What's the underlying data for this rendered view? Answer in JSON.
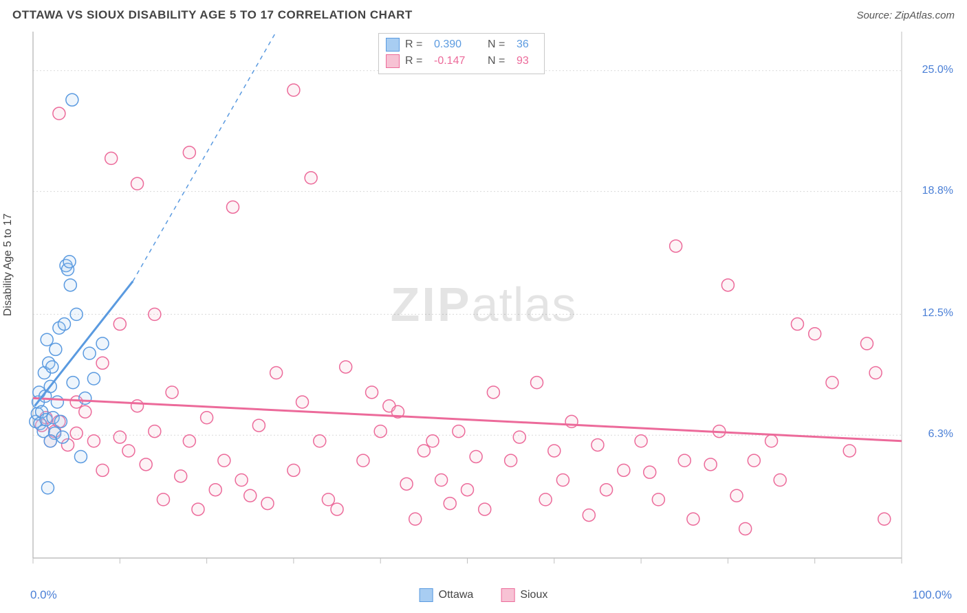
{
  "header": {
    "title": "OTTAWA VS SIOUX DISABILITY AGE 5 TO 17 CORRELATION CHART",
    "source": "Source: ZipAtlas.com"
  },
  "watermark": {
    "zip": "ZIP",
    "atlas": "atlas"
  },
  "chart": {
    "type": "scatter",
    "ylabel": "Disability Age 5 to 17",
    "background_color": "#ffffff",
    "grid_color": "#d9d9d9",
    "axis_color": "#bfbfbf",
    "tick_color": "#bfbfbf",
    "label_fontsize": 16,
    "xlim": [
      0,
      100
    ],
    "ylim": [
      0,
      27
    ],
    "x_axis": {
      "min_label": "0.0%",
      "max_label": "100.0%",
      "label_color": "#4a7fd6",
      "tick_step": 10
    },
    "y_gridlines": [
      6.3,
      12.5,
      18.8,
      25.0
    ],
    "y_gridline_labels": [
      "6.3%",
      "12.5%",
      "18.8%",
      "25.0%"
    ],
    "marker_radius": 9,
    "marker_stroke_width": 1.5,
    "marker_fill_opacity": 0.2,
    "series": {
      "ottawa": {
        "label": "Ottawa",
        "color_stroke": "#5a9ae0",
        "color_fill": "#a8cdf2",
        "R": "0.390",
        "N": "36",
        "trend": {
          "x1": 0.2,
          "y1": 7.8,
          "x2": 11.5,
          "y2": 14.2,
          "dash_x2": 28,
          "dash_y2": 27,
          "width": 3
        },
        "points": [
          [
            0.3,
            7.0
          ],
          [
            0.5,
            7.4
          ],
          [
            0.6,
            8.0
          ],
          [
            0.7,
            8.5
          ],
          [
            0.8,
            6.9
          ],
          [
            1.0,
            7.5
          ],
          [
            1.2,
            6.5
          ],
          [
            1.3,
            9.5
          ],
          [
            1.4,
            8.3
          ],
          [
            1.5,
            7.1
          ],
          [
            1.6,
            11.2
          ],
          [
            1.8,
            10.0
          ],
          [
            2.0,
            8.8
          ],
          [
            2.2,
            9.8
          ],
          [
            2.3,
            7.2
          ],
          [
            2.5,
            6.4
          ],
          [
            2.6,
            10.7
          ],
          [
            2.8,
            8.0
          ],
          [
            3.0,
            11.8
          ],
          [
            3.2,
            7.0
          ],
          [
            3.4,
            6.2
          ],
          [
            3.6,
            12.0
          ],
          [
            3.8,
            15.0
          ],
          [
            4.0,
            14.8
          ],
          [
            4.2,
            15.2
          ],
          [
            4.3,
            14.0
          ],
          [
            4.6,
            9.0
          ],
          [
            5.0,
            12.5
          ],
          [
            5.5,
            5.2
          ],
          [
            6.0,
            8.2
          ],
          [
            6.5,
            10.5
          ],
          [
            7.0,
            9.2
          ],
          [
            8.0,
            11.0
          ],
          [
            4.5,
            23.5
          ],
          [
            1.7,
            3.6
          ],
          [
            2.0,
            6.0
          ]
        ]
      },
      "sioux": {
        "label": "Sioux",
        "color_stroke": "#ec6a9a",
        "color_fill": "#f7c2d4",
        "R": "-0.147",
        "N": "93",
        "trend": {
          "x1": 0,
          "y1": 8.2,
          "x2": 100,
          "y2": 6.0,
          "width": 3
        },
        "points": [
          [
            1,
            6.8
          ],
          [
            1.5,
            7.2
          ],
          [
            2,
            6.0
          ],
          [
            2.5,
            6.5
          ],
          [
            3,
            7.0
          ],
          [
            3,
            22.8
          ],
          [
            4,
            5.8
          ],
          [
            5,
            8.0
          ],
          [
            5,
            6.4
          ],
          [
            6,
            7.5
          ],
          [
            7,
            6.0
          ],
          [
            8,
            4.5
          ],
          [
            8,
            10.0
          ],
          [
            9,
            20.5
          ],
          [
            10,
            6.2
          ],
          [
            10,
            12.0
          ],
          [
            11,
            5.5
          ],
          [
            12,
            7.8
          ],
          [
            12,
            19.2
          ],
          [
            13,
            4.8
          ],
          [
            14,
            6.5
          ],
          [
            14,
            12.5
          ],
          [
            15,
            3.0
          ],
          [
            16,
            8.5
          ],
          [
            17,
            4.2
          ],
          [
            18,
            6.0
          ],
          [
            18,
            20.8
          ],
          [
            19,
            2.5
          ],
          [
            20,
            7.2
          ],
          [
            21,
            3.5
          ],
          [
            22,
            5.0
          ],
          [
            23,
            18.0
          ],
          [
            24,
            4.0
          ],
          [
            25,
            3.2
          ],
          [
            26,
            6.8
          ],
          [
            27,
            2.8
          ],
          [
            28,
            9.5
          ],
          [
            30,
            24.0
          ],
          [
            30,
            4.5
          ],
          [
            31,
            8.0
          ],
          [
            32,
            19.5
          ],
          [
            33,
            6.0
          ],
          [
            34,
            3.0
          ],
          [
            35,
            2.5
          ],
          [
            36,
            9.8
          ],
          [
            38,
            5.0
          ],
          [
            39,
            8.5
          ],
          [
            40,
            6.5
          ],
          [
            41,
            7.8
          ],
          [
            42,
            7.5
          ],
          [
            43,
            3.8
          ],
          [
            44,
            2.0
          ],
          [
            45,
            5.5
          ],
          [
            46,
            6.0
          ],
          [
            47,
            4.0
          ],
          [
            48,
            2.8
          ],
          [
            49,
            6.5
          ],
          [
            50,
            3.5
          ],
          [
            51,
            5.2
          ],
          [
            52,
            2.5
          ],
          [
            53,
            8.5
          ],
          [
            55,
            5.0
          ],
          [
            56,
            6.2
          ],
          [
            58,
            9.0
          ],
          [
            59,
            3.0
          ],
          [
            60,
            5.5
          ],
          [
            61,
            4.0
          ],
          [
            62,
            7.0
          ],
          [
            64,
            2.2
          ],
          [
            65,
            5.8
          ],
          [
            66,
            3.5
          ],
          [
            68,
            4.5
          ],
          [
            70,
            6.0
          ],
          [
            71,
            4.4
          ],
          [
            72,
            3.0
          ],
          [
            74,
            16.0
          ],
          [
            75,
            5.0
          ],
          [
            76,
            2.0
          ],
          [
            78,
            4.8
          ],
          [
            79,
            6.5
          ],
          [
            80,
            14.0
          ],
          [
            81,
            3.2
          ],
          [
            82,
            1.5
          ],
          [
            83,
            5.0
          ],
          [
            85,
            6.0
          ],
          [
            86,
            4.0
          ],
          [
            88,
            12.0
          ],
          [
            90,
            11.5
          ],
          [
            92,
            9.0
          ],
          [
            94,
            5.5
          ],
          [
            96,
            11.0
          ],
          [
            97,
            9.5
          ],
          [
            98,
            2.0
          ]
        ]
      }
    },
    "legend_top": {
      "r_label": "R =",
      "n_label": "N ="
    },
    "legend_bottom": [
      {
        "key": "ottawa"
      },
      {
        "key": "sioux"
      }
    ]
  }
}
